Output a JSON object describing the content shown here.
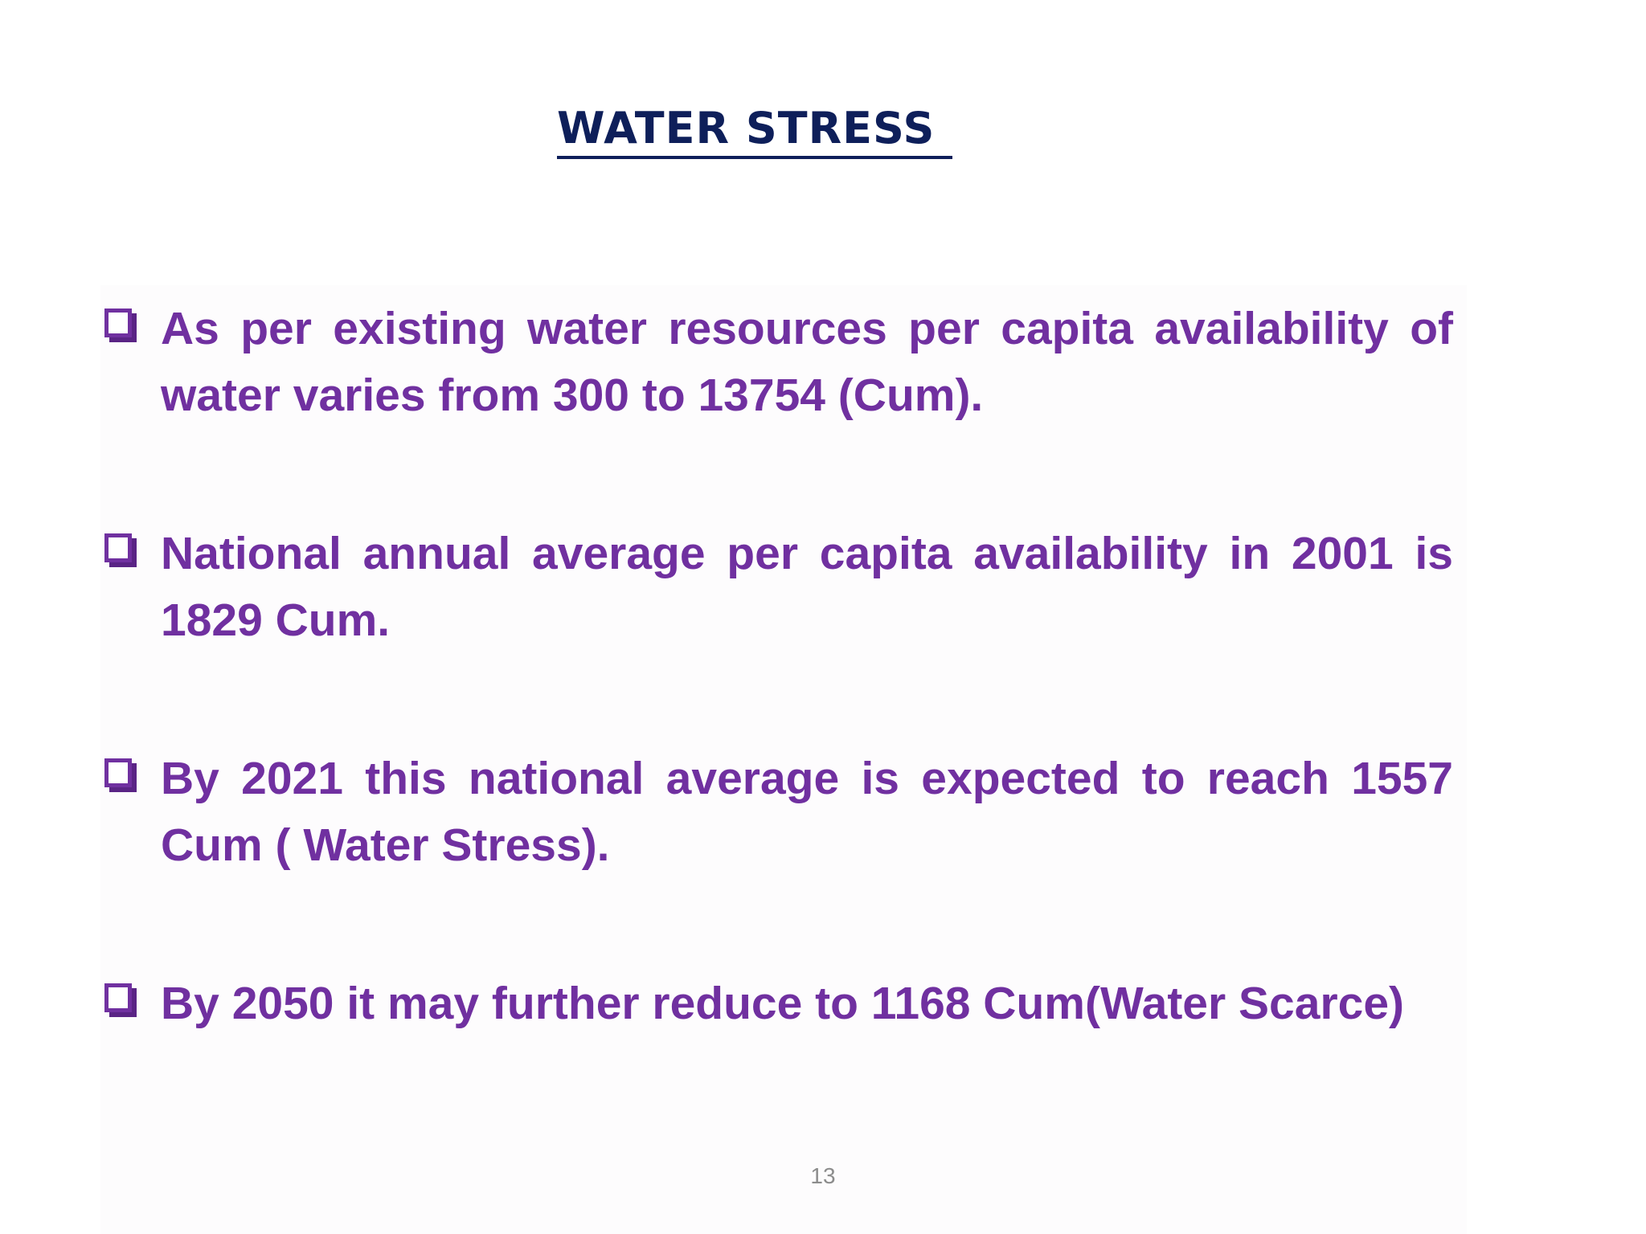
{
  "slide": {
    "title": "WATER STRESS ",
    "bullets": [
      {
        "text": "As per existing water resources per capita availability of water varies from 300 to 13754 (Cum)."
      },
      {
        "text": "National annual average per capita availability in 2001 is 1829 Cum."
      },
      {
        "text": "By 2021 this national average is expected to reach 1557 Cum ( Water Stress)."
      },
      {
        "text": "By 2050 it may further reduce to 1168 Cum(Water Scarce)"
      }
    ],
    "page_number": "13"
  },
  "colors": {
    "title": "#0e1f5a",
    "bullet_text": "#7030a0",
    "bullet_icon": "#7030a0",
    "page_number": "#8c8c8c",
    "background": "#ffffff"
  },
  "icons": {
    "bullet": "checkbox-icon"
  }
}
